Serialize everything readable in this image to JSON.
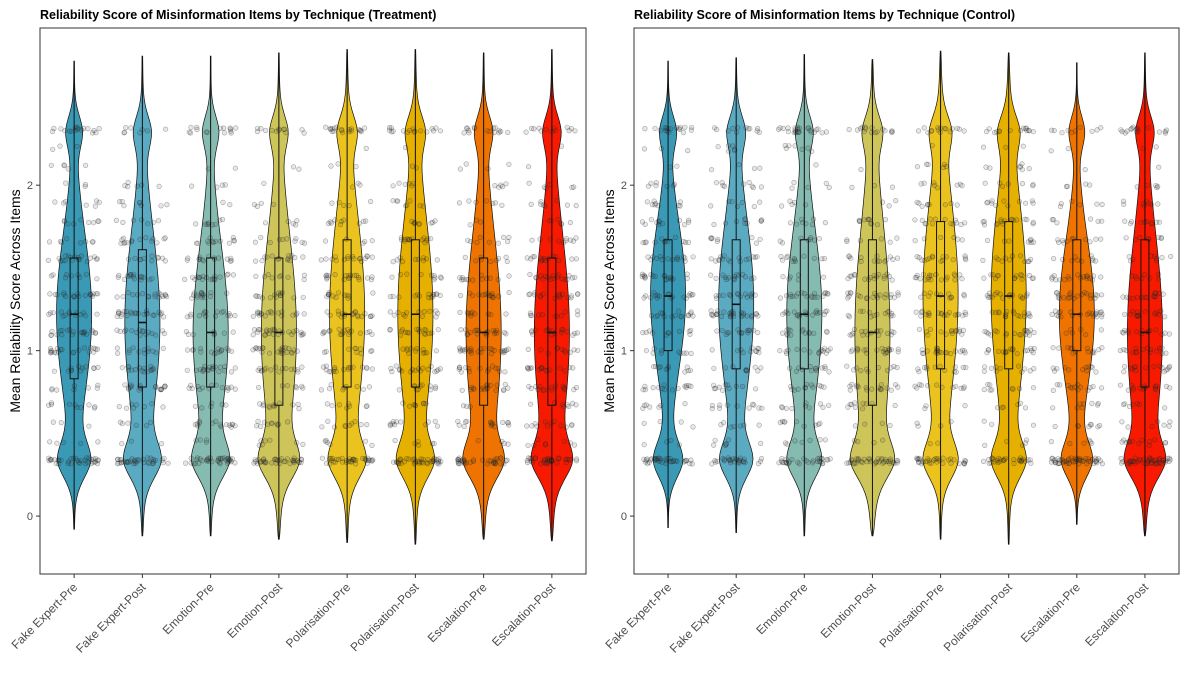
{
  "chart_data": [
    {
      "type": "violin",
      "title": "Reliability Score of Misinformation Items by Technique (Treatment)",
      "xlabel": "",
      "ylabel": "Mean Reliability Score Across Items",
      "ylim": [
        -0.35,
        2.95
      ],
      "yticks": [
        0,
        1,
        2
      ],
      "grid": false,
      "legend": "none",
      "categories": [
        "Fake Expert-Pre",
        "Fake Expert-Post",
        "Emotion-Pre",
        "Emotion-Post",
        "Polarisation-Pre",
        "Polarisation-Post",
        "Escalation-Pre",
        "Escalation-Post"
      ],
      "colors": [
        "#3a9ab6",
        "#5aaac2",
        "#85bbb0",
        "#cdc55a",
        "#ebc31e",
        "#e6b000",
        "#ef7300",
        "#f81a00"
      ],
      "stats": [
        {
          "min": 0.33,
          "q1": 0.83,
          "median": 1.22,
          "q3": 1.56,
          "max": 2.33,
          "upper_tail": 2.75,
          "lower_tail": -0.08
        },
        {
          "min": 0.33,
          "q1": 0.78,
          "median": 1.17,
          "q3": 1.61,
          "max": 2.33,
          "upper_tail": 2.78,
          "lower_tail": -0.12
        },
        {
          "min": 0.33,
          "q1": 0.78,
          "median": 1.11,
          "q3": 1.56,
          "max": 2.33,
          "upper_tail": 2.78,
          "lower_tail": -0.12
        },
        {
          "min": 0.33,
          "q1": 0.67,
          "median": 1.11,
          "q3": 1.56,
          "max": 2.33,
          "upper_tail": 2.8,
          "lower_tail": -0.14
        },
        {
          "min": 0.33,
          "q1": 0.78,
          "median": 1.22,
          "q3": 1.67,
          "max": 2.33,
          "upper_tail": 2.82,
          "lower_tail": -0.16
        },
        {
          "min": 0.33,
          "q1": 0.78,
          "median": 1.22,
          "q3": 1.67,
          "max": 2.33,
          "upper_tail": 2.82,
          "lower_tail": -0.17
        },
        {
          "min": 0.33,
          "q1": 0.67,
          "median": 1.11,
          "q3": 1.56,
          "max": 2.33,
          "upper_tail": 2.8,
          "lower_tail": -0.14
        },
        {
          "min": 0.33,
          "q1": 0.67,
          "median": 1.11,
          "q3": 1.56,
          "max": 2.33,
          "upper_tail": 2.82,
          "lower_tail": -0.15
        }
      ]
    },
    {
      "type": "violin",
      "title": "Reliability Score of Misinformation Items by Technique (Control)",
      "xlabel": "",
      "ylabel": "Mean Reliability Score Across Items",
      "ylim": [
        -0.35,
        2.95
      ],
      "yticks": [
        0,
        1,
        2
      ],
      "grid": false,
      "legend": "none",
      "categories": [
        "Fake Expert-Pre",
        "Fake Expert-Post",
        "Emotion-Pre",
        "Emotion-Post",
        "Polarisation-Pre",
        "Polarisation-Post",
        "Escalation-Pre",
        "Escalation-Post"
      ],
      "colors": [
        "#3a9ab6",
        "#5aaac2",
        "#85bbb0",
        "#cdc55a",
        "#ebc31e",
        "#e6b000",
        "#ef7300",
        "#f81a00"
      ],
      "stats": [
        {
          "min": 0.33,
          "q1": 1.0,
          "median": 1.33,
          "q3": 1.67,
          "max": 2.33,
          "upper_tail": 2.75,
          "lower_tail": -0.07
        },
        {
          "min": 0.33,
          "q1": 0.89,
          "median": 1.28,
          "q3": 1.67,
          "max": 2.33,
          "upper_tail": 2.77,
          "lower_tail": -0.1
        },
        {
          "min": 0.33,
          "q1": 0.89,
          "median": 1.22,
          "q3": 1.67,
          "max": 2.33,
          "upper_tail": 2.79,
          "lower_tail": -0.12
        },
        {
          "min": 0.33,
          "q1": 0.67,
          "median": 1.11,
          "q3": 1.67,
          "max": 2.33,
          "upper_tail": 2.76,
          "lower_tail": -0.12
        },
        {
          "min": 0.33,
          "q1": 0.89,
          "median": 1.33,
          "q3": 1.78,
          "max": 2.33,
          "upper_tail": 2.81,
          "lower_tail": -0.14
        },
        {
          "min": 0.33,
          "q1": 0.89,
          "median": 1.33,
          "q3": 1.78,
          "max": 2.33,
          "upper_tail": 2.8,
          "lower_tail": -0.17
        },
        {
          "min": 0.33,
          "q1": 1.0,
          "median": 1.22,
          "q3": 1.67,
          "max": 2.33,
          "upper_tail": 2.74,
          "lower_tail": -0.05
        },
        {
          "min": 0.33,
          "q1": 0.78,
          "median": 1.11,
          "q3": 1.67,
          "max": 2.33,
          "upper_tail": 2.8,
          "lower_tail": -0.12
        }
      ]
    }
  ]
}
